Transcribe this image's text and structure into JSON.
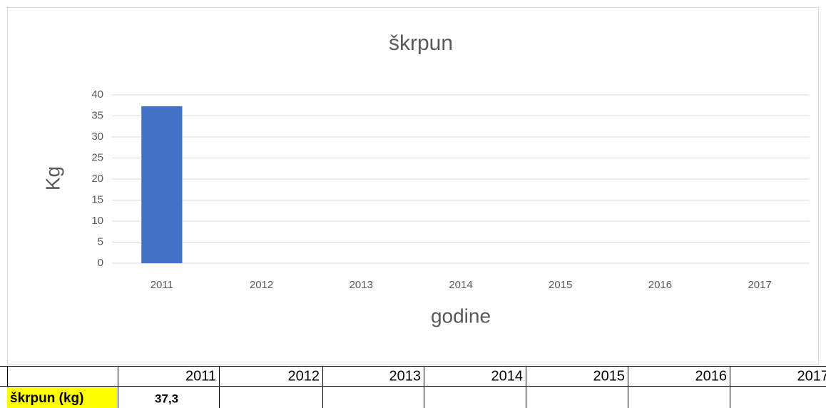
{
  "chart_data": {
    "type": "bar",
    "title": "škrpun",
    "y_label": "Kg",
    "x_label": "godine",
    "categories": [
      "2011",
      "2012",
      "2013",
      "2014",
      "2015",
      "2016",
      "2017"
    ],
    "values": [
      37.3,
      null,
      null,
      null,
      null,
      null,
      null
    ],
    "color": "#4472c4",
    "ylim": [
      0,
      40
    ],
    "yticks": [
      0,
      5,
      10,
      15,
      20,
      25,
      30,
      35,
      40
    ],
    "grid": true
  },
  "table": {
    "row_label": "škrpun (kg)",
    "cells": [
      "37,3"
    ]
  }
}
